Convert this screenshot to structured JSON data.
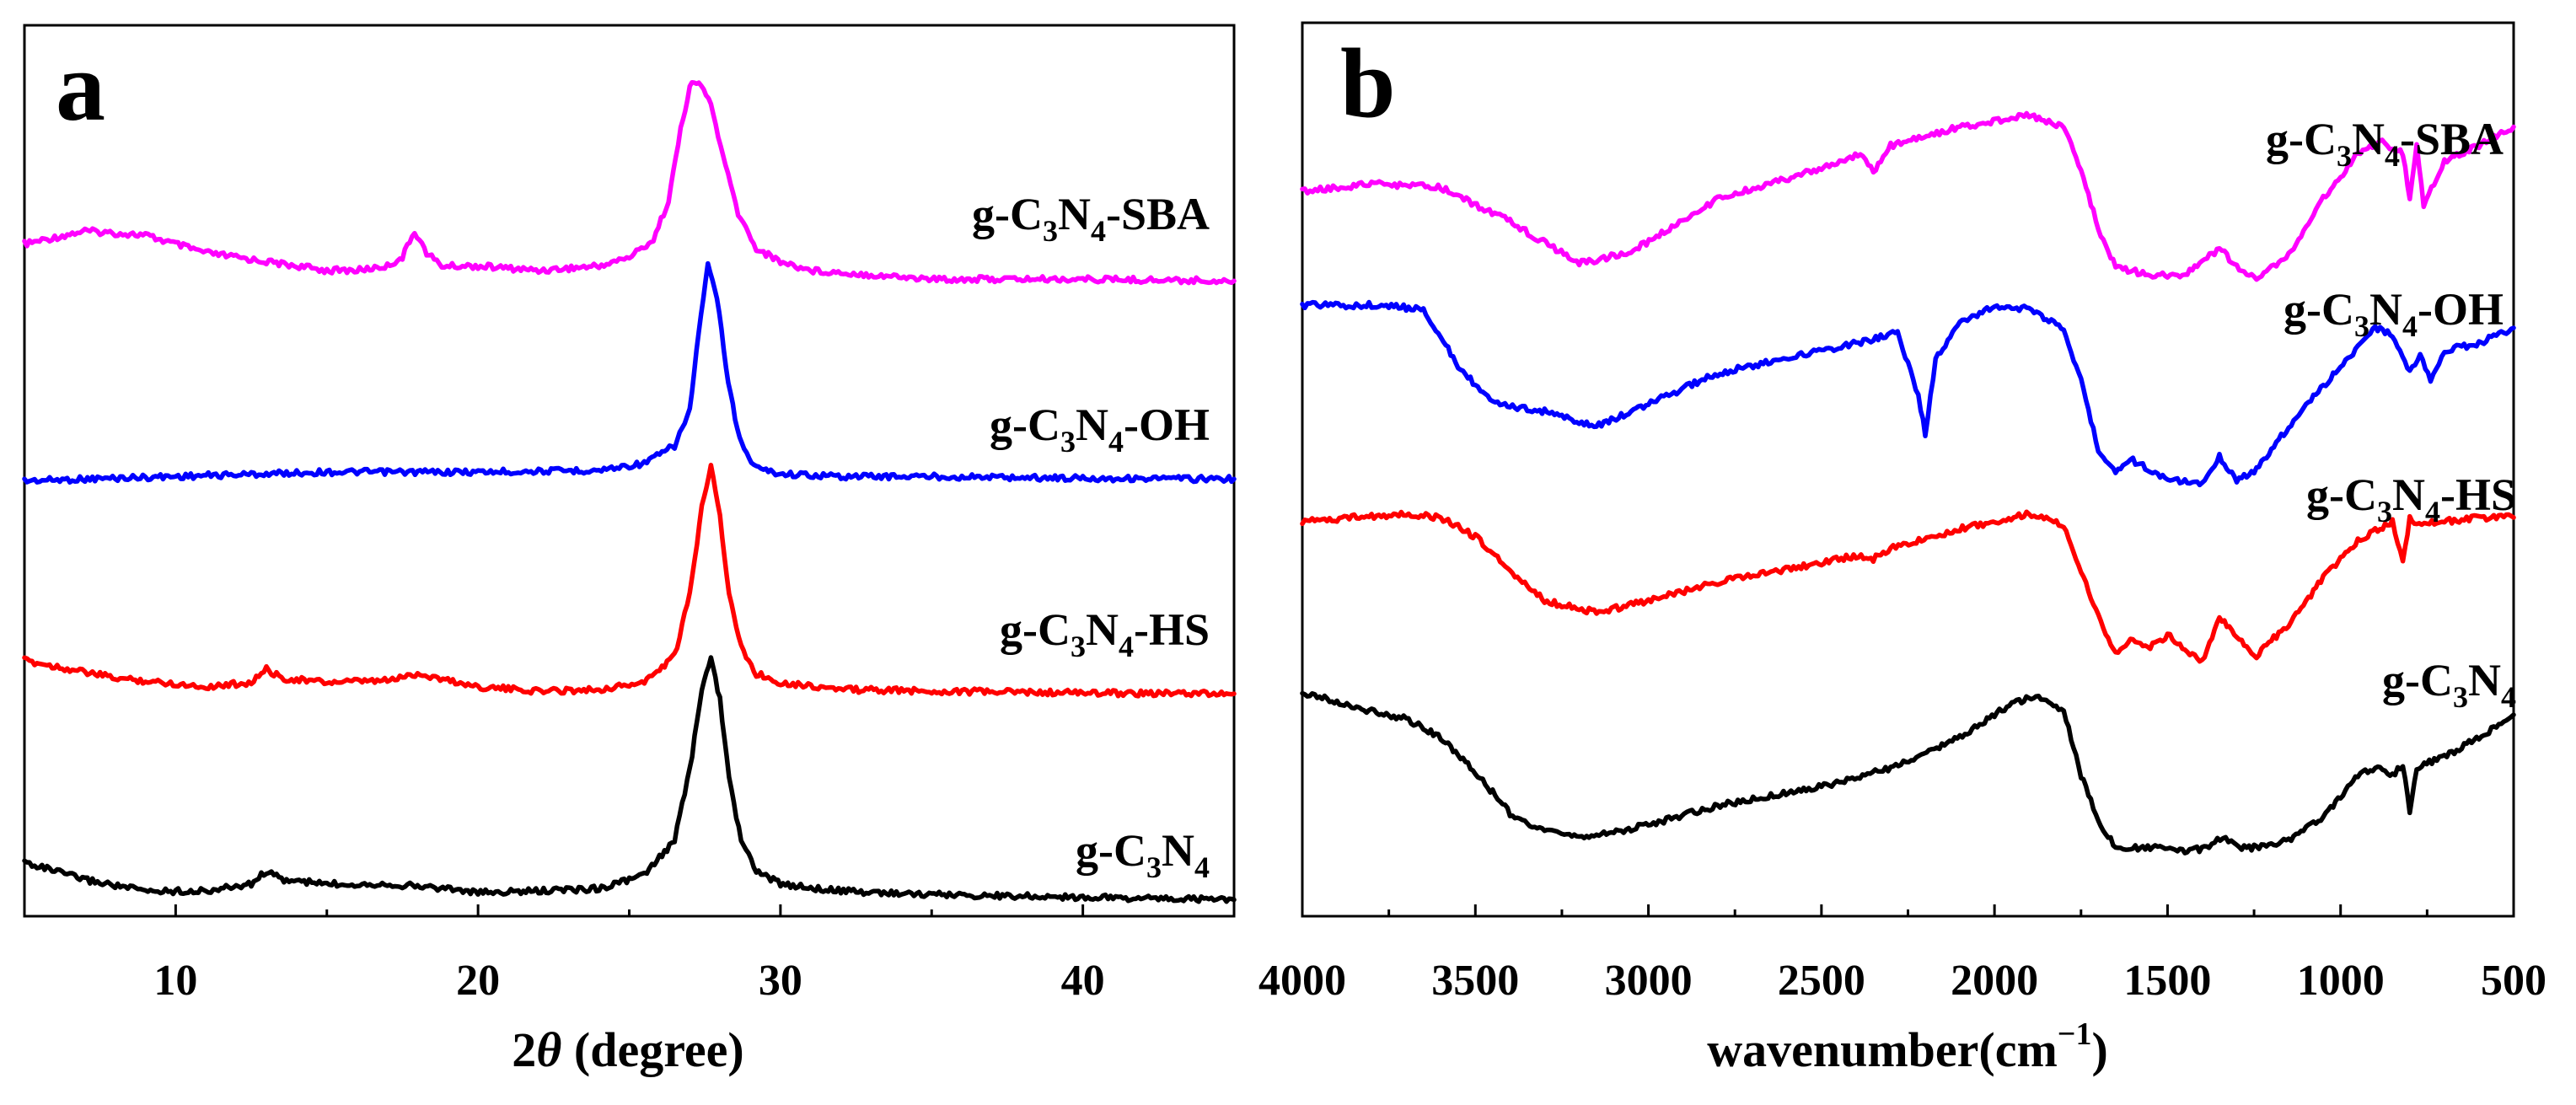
{
  "chart_data": [
    {
      "type": "line",
      "panel_label": "a",
      "xlabel_prefix": "2",
      "xlabel_theta": "θ",
      "xlabel_suffix": " (degree)",
      "ylabel": "",
      "xlim": [
        5,
        45
      ],
      "ylim": [
        0,
        10
      ],
      "xticks": [
        10,
        20,
        30,
        40
      ],
      "grid": false,
      "legend": "none (series labeled inline on the right)",
      "series": [
        {
          "name": "g-C3N4-SBA",
          "label_main": "g-C",
          "label_sub1": "3",
          "label_mid": "N",
          "label_sub2": "4",
          "label_suffix": "-SBA",
          "color": "#ff00ff",
          "offset": 7.6,
          "x": [
            5,
            7,
            9,
            10,
            11,
            12,
            13,
            14,
            15,
            16,
            17,
            17.5,
            17.9,
            18.3,
            18.8,
            20,
            22,
            24,
            25,
            25.8,
            26.3,
            26.7,
            27.0,
            27.3,
            27.7,
            28.1,
            28.6,
            29.2,
            30,
            31,
            33,
            35,
            40,
            45
          ],
          "y": [
            7.6,
            7.75,
            7.7,
            7.6,
            7.5,
            7.45,
            7.4,
            7.35,
            7.3,
            7.3,
            7.35,
            7.45,
            7.75,
            7.5,
            7.35,
            7.35,
            7.3,
            7.35,
            7.45,
            7.65,
            8.1,
            8.9,
            9.4,
            9.45,
            9.2,
            8.6,
            7.95,
            7.55,
            7.4,
            7.3,
            7.25,
            7.2,
            7.2,
            7.18
          ]
        },
        {
          "name": "g-C3N4-OH",
          "label_main": "g-C",
          "label_sub1": "3",
          "label_mid": "N",
          "label_sub2": "4",
          "label_suffix": "-OH",
          "color": "#0000ff",
          "offset": 4.9,
          "x": [
            5,
            10,
            15,
            20,
            24,
            25.5,
            26.5,
            27.0,
            27.3,
            27.6,
            27.9,
            28.2,
            28.5,
            28.8,
            29.2,
            30,
            32,
            35,
            40,
            45
          ],
          "y": [
            4.9,
            4.95,
            5.0,
            5.0,
            5.02,
            5.1,
            5.3,
            5.7,
            6.6,
            7.35,
            7.0,
            6.2,
            5.6,
            5.25,
            5.05,
            4.98,
            4.95,
            4.95,
            4.93,
            4.92
          ]
        },
        {
          "name": "g-C3N4-HS",
          "label_main": "g-C",
          "label_sub1": "3",
          "label_mid": "N",
          "label_sub2": "4",
          "label_suffix": "-HS",
          "color": "#ff0000",
          "offset": 2.6,
          "x": [
            5,
            8,
            11,
            12.5,
            13.0,
            13.5,
            15,
            17,
            18,
            20,
            22,
            24,
            25.5,
            26.5,
            27.0,
            27.4,
            27.7,
            28.0,
            28.3,
            28.7,
            29.2,
            30,
            32,
            35,
            40,
            45
          ],
          "y": [
            2.85,
            2.65,
            2.55,
            2.6,
            2.75,
            2.65,
            2.6,
            2.62,
            2.7,
            2.55,
            2.5,
            2.52,
            2.6,
            2.9,
            3.6,
            4.6,
            5.1,
            4.5,
            3.6,
            3.0,
            2.7,
            2.6,
            2.52,
            2.5,
            2.48,
            2.47
          ]
        },
        {
          "name": "g-C3N4",
          "label_main": "g-C",
          "label_sub1": "3",
          "label_mid": "N",
          "label_sub2": "4",
          "label_suffix": "",
          "color": "#000000",
          "offset": 0.0,
          "x": [
            5,
            7,
            9,
            11,
            12.5,
            13.0,
            13.5,
            15,
            17,
            19,
            20,
            22,
            24,
            25.5,
            26.5,
            27.0,
            27.4,
            27.7,
            28.0,
            28.3,
            28.7,
            29.2,
            30,
            32,
            35,
            40,
            45
          ],
          "y": [
            0.55,
            0.35,
            0.22,
            0.22,
            0.3,
            0.45,
            0.35,
            0.3,
            0.3,
            0.25,
            0.2,
            0.22,
            0.25,
            0.4,
            0.8,
            1.6,
            2.5,
            2.9,
            2.4,
            1.5,
            0.8,
            0.45,
            0.3,
            0.22,
            0.18,
            0.15,
            0.12
          ]
        }
      ]
    },
    {
      "type": "line",
      "panel_label": "b",
      "xlabel": "wavenumber(cm",
      "xlabel_sup": "−1",
      "xlabel_close": ")",
      "ylabel": "",
      "xlim": [
        4000,
        500
      ],
      "ylim": [
        0,
        10
      ],
      "xticks": [
        4000,
        3500,
        3000,
        2500,
        2000,
        1500,
        1000,
        500
      ],
      "grid": false,
      "legend": "none (series labeled inline on the right)",
      "series": [
        {
          "name": "g-C3N4-SBA",
          "label_main": "g-C",
          "label_sub1": "3",
          "label_mid": "N",
          "label_sub2": "4",
          "label_suffix": "-SBA",
          "color": "#ff00ff",
          "x": [
            4000,
            3800,
            3600,
            3400,
            3200,
            3050,
            2800,
            2500,
            2380,
            2350,
            2300,
            2100,
            1900,
            1800,
            1750,
            1700,
            1650,
            1550,
            1450,
            1350,
            1300,
            1250,
            1150,
            1050,
            950,
            880,
            820,
            800,
            780,
            760,
            700,
            600,
            500
          ],
          "y": [
            8.7,
            8.8,
            8.75,
            8.3,
            7.75,
            7.9,
            8.6,
            9.0,
            9.2,
            8.95,
            9.3,
            9.55,
            9.7,
            9.55,
            9.0,
            8.2,
            7.7,
            7.6,
            7.6,
            7.95,
            7.7,
            7.55,
            7.85,
            8.6,
            9.2,
            9.35,
            9.2,
            8.6,
            9.3,
            8.5,
            9.1,
            9.3,
            9.55
          ]
        },
        {
          "name": "g-C3N4-OH",
          "label_main": "g-C",
          "label_sub1": "3",
          "label_mid": "N",
          "label_sub2": "4",
          "label_suffix": "-OH",
          "color": "#0000ff",
          "x": [
            4000,
            3800,
            3650,
            3550,
            3450,
            3300,
            3150,
            3000,
            2800,
            2500,
            2350,
            2280,
            2220,
            2200,
            2170,
            2100,
            2000,
            1900,
            1800,
            1750,
            1700,
            1650,
            1600,
            1500,
            1400,
            1350,
            1300,
            1250,
            1150,
            1000,
            900,
            850,
            800,
            770,
            740,
            700,
            600,
            500
          ],
          "y": [
            7.2,
            7.2,
            7.15,
            6.4,
            5.9,
            5.8,
            5.6,
            5.9,
            6.3,
            6.6,
            6.75,
            6.85,
            6.0,
            5.5,
            6.5,
            6.95,
            7.2,
            7.15,
            6.9,
            6.2,
            5.3,
            5.0,
            5.15,
            4.9,
            4.85,
            5.2,
            4.9,
            5.0,
            5.6,
            6.4,
            6.9,
            6.8,
            6.3,
            6.55,
            6.2,
            6.6,
            6.7,
            6.9
          ]
        },
        {
          "name": "g-C3N4-HS",
          "label_main": "g-C",
          "label_sub1": "3",
          "label_mid": "N",
          "label_sub2": "4",
          "label_suffix": "-HS",
          "color": "#ff0000",
          "x": [
            4000,
            3850,
            3700,
            3600,
            3500,
            3400,
            3300,
            3150,
            3000,
            2800,
            2500,
            2400,
            2350,
            2300,
            2100,
            1900,
            1800,
            1750,
            1700,
            1650,
            1600,
            1550,
            1500,
            1400,
            1350,
            1300,
            1250,
            1150,
            1050,
            950,
            850,
            820,
            800,
            780,
            700,
            600,
            500
          ],
          "y": [
            4.35,
            4.4,
            4.45,
            4.4,
            4.15,
            3.7,
            3.3,
            3.15,
            3.3,
            3.55,
            3.8,
            3.9,
            3.85,
            4.0,
            4.25,
            4.45,
            4.3,
            3.7,
            3.1,
            2.6,
            2.8,
            2.7,
            2.85,
            2.5,
            3.1,
            2.85,
            2.55,
            3.0,
            3.6,
            4.1,
            4.35,
            3.8,
            4.4,
            4.3,
            4.35,
            4.4,
            4.4
          ]
        },
        {
          "name": "g-C3N4",
          "label_main": "g-C",
          "label_sub1": "3",
          "label_mid": "N",
          "label_sub2": "4",
          "label_suffix": "",
          "color": "#000000",
          "x": [
            4000,
            3850,
            3700,
            3600,
            3500,
            3400,
            3300,
            3150,
            3000,
            2800,
            2500,
            2300,
            2100,
            1950,
            1880,
            1800,
            1750,
            1700,
            1650,
            1550,
            1450,
            1380,
            1340,
            1300,
            1250,
            1150,
            1050,
            950,
            900,
            850,
            820,
            800,
            780,
            700,
            600,
            500
          ],
          "y": [
            2.1,
            1.9,
            1.75,
            1.5,
            1.05,
            0.5,
            0.25,
            0.2,
            0.35,
            0.6,
            0.85,
            1.1,
            1.5,
            1.95,
            2.05,
            1.85,
            1.0,
            0.4,
            0.05,
            0.05,
            0.0,
            0.05,
            0.2,
            0.05,
            0.05,
            0.15,
            0.45,
            1.0,
            1.1,
            1.0,
            1.15,
            0.5,
            1.1,
            1.25,
            1.5,
            1.8
          ]
        }
      ]
    }
  ]
}
